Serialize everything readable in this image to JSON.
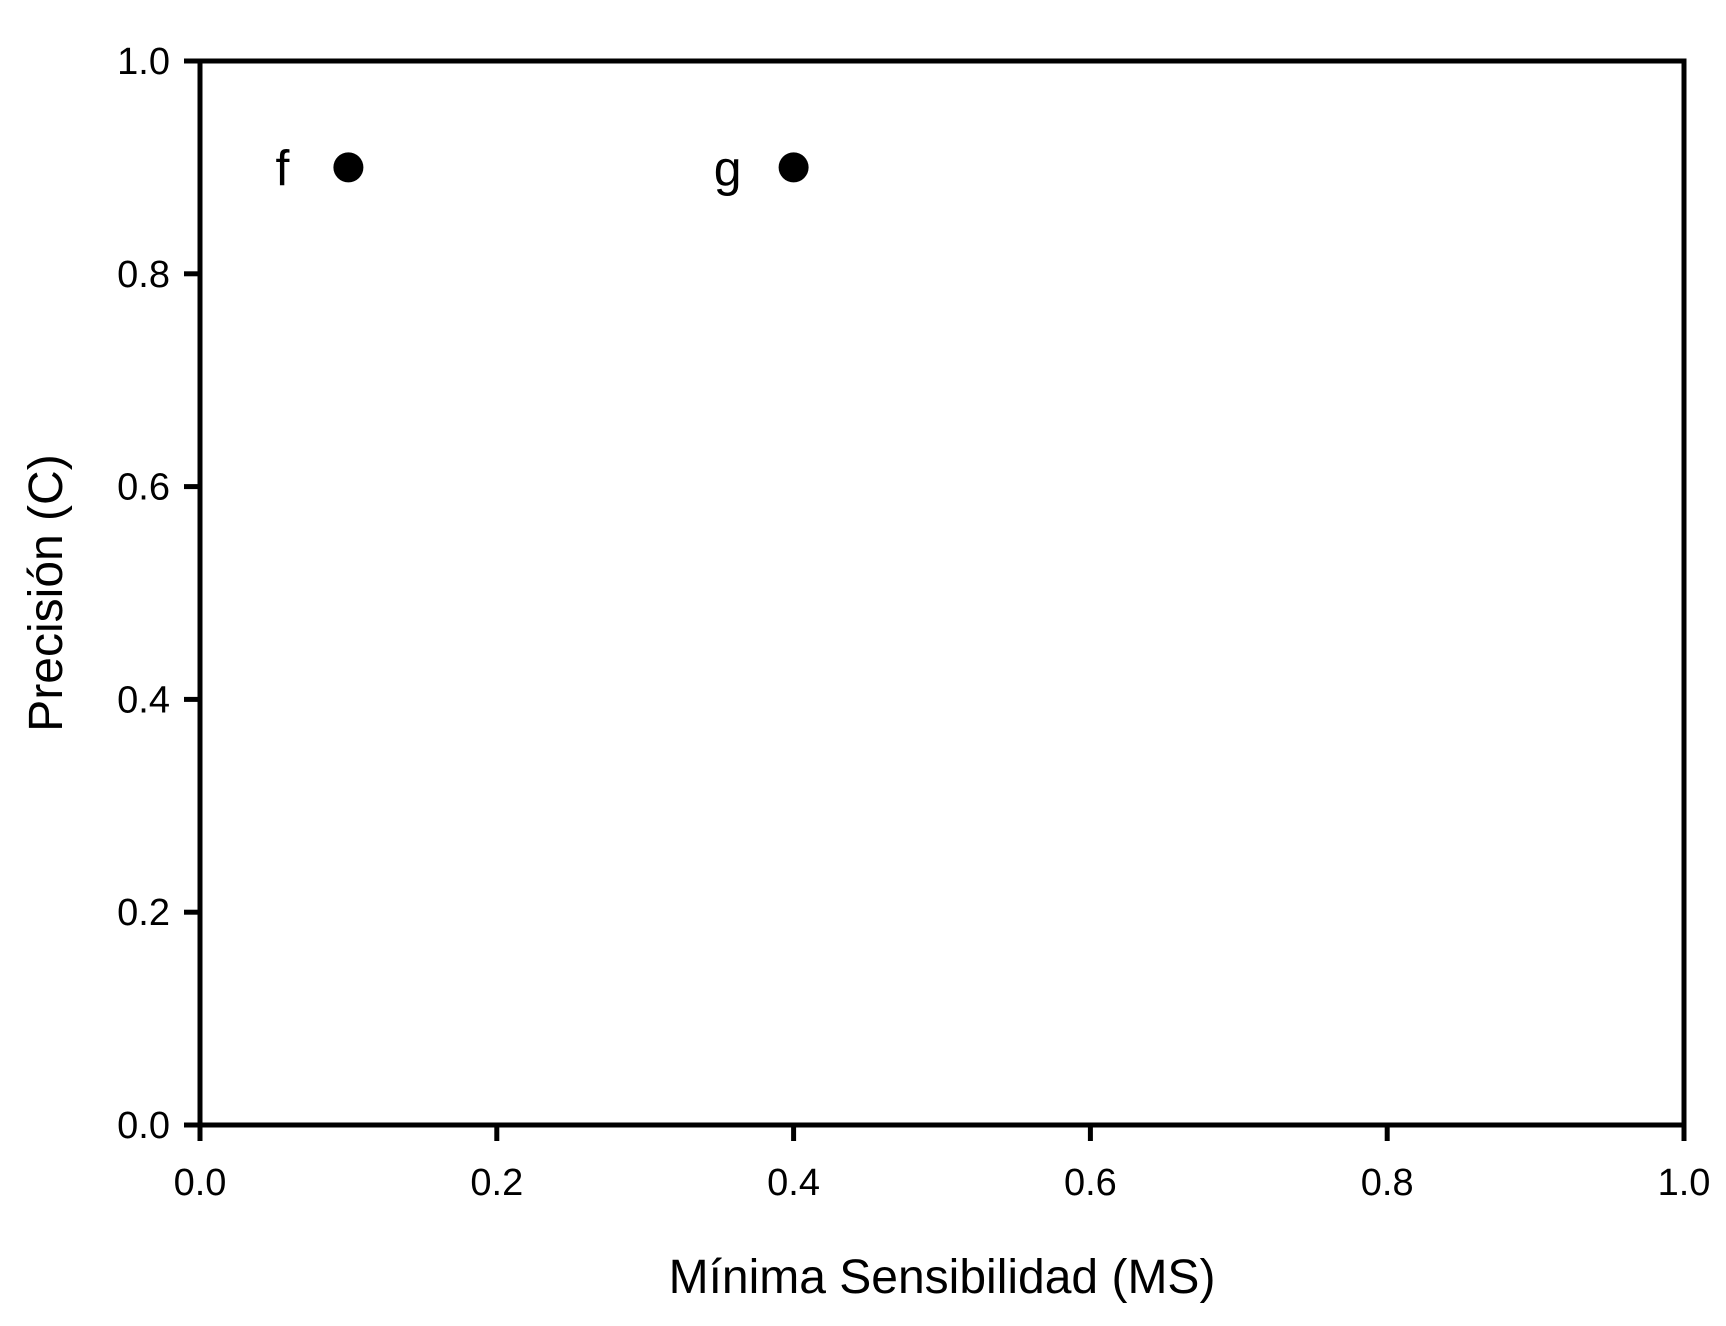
{
  "chart_data": {
    "type": "scatter",
    "title": "",
    "xlabel": "Mínima Sensibilidad (MS)",
    "ylabel": "Precisión (C)",
    "xlim": [
      0.0,
      1.0
    ],
    "ylim": [
      0.0,
      1.0
    ],
    "xticks": [
      "0.0",
      "0.2",
      "0.4",
      "0.6",
      "0.8",
      "1.0"
    ],
    "yticks": [
      "0.0",
      "0.2",
      "0.4",
      "0.6",
      "0.8",
      "1.0"
    ],
    "grid": false,
    "legend": "none",
    "marker_color": "#000000",
    "points": [
      {
        "label": "f",
        "x": 0.1,
        "y": 0.9
      },
      {
        "label": "g",
        "x": 0.4,
        "y": 0.9
      }
    ]
  }
}
